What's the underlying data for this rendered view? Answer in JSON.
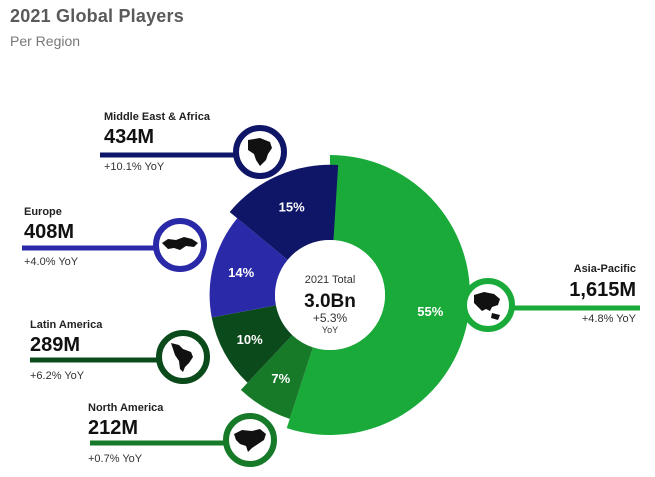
{
  "header": {
    "title": "2021 Global Players",
    "subtitle": "Per Region"
  },
  "chart_data": {
    "type": "pie",
    "title": "2021 Global Players",
    "subtitle": "Per Region",
    "center": {
      "label": "2021 Total",
      "value": "3.0Bn",
      "yoy": "+5.3%",
      "yoy_unit": "YoY"
    },
    "slices": [
      {
        "name": "Asia-Pacific",
        "percent": 55,
        "percent_label": "55%",
        "value_label": "1,615M",
        "yoy": "+4.8% YoY",
        "color": "#1aaa3a",
        "icon": "asia-pacific-map-icon"
      },
      {
        "name": "North America",
        "percent": 7,
        "percent_label": "7%",
        "value_label": "212M",
        "yoy": "+0.7% YoY",
        "color": "#167a29",
        "icon": "north-america-map-icon"
      },
      {
        "name": "Latin America",
        "percent": 10,
        "percent_label": "10%",
        "value_label": "289M",
        "yoy": "+6.2% YoY",
        "color": "#0b4a1b",
        "icon": "latin-america-map-icon"
      },
      {
        "name": "Europe",
        "percent": 14,
        "percent_label": "14%",
        "value_label": "408M",
        "yoy": "+4.0% YoY",
        "color": "#2a2aa8",
        "icon": "europe-map-icon"
      },
      {
        "name": "Middle East & Africa",
        "percent": 15,
        "percent_label": "15%",
        "value_label": "434M",
        "yoy": "+10.1% YoY",
        "color": "#0f1668",
        "icon": "africa-map-icon"
      }
    ]
  }
}
